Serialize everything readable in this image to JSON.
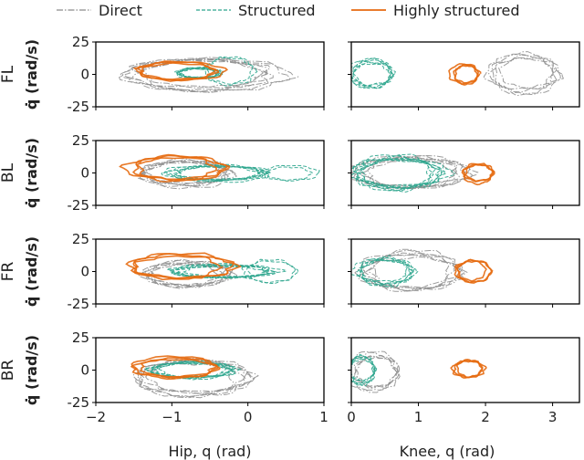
{
  "figure": {
    "xlabels": [
      "Hip, q (rad)",
      "Knee, q (rad)"
    ]
  },
  "legend": {
    "placement": "top",
    "entries": [
      {
        "label": "Direct",
        "color": "#8c8c8c",
        "style": "dashdot"
      },
      {
        "label": "Structured",
        "color": "#2ca58d",
        "style": "dashed"
      },
      {
        "label": "Highly structured",
        "color": "#e66a10",
        "style": "solid"
      }
    ]
  },
  "chart_data": {
    "type": "line",
    "kind": "phase-portrait grid",
    "rows": [
      "FL",
      "BL",
      "FR",
      "BR"
    ],
    "ylabel": "q̇ (rad/s)",
    "ylim": [
      -25,
      25
    ],
    "yticks": [
      25,
      0,
      -25
    ],
    "hip_xlim": [
      -2.0,
      1.0
    ],
    "hip_xticks": [
      -2,
      -1,
      0,
      1
    ],
    "hip_xlabel": "Hip, q (rad)",
    "knee_xlim": [
      0.0,
      3.4
    ],
    "knee_xticks": [
      0,
      1,
      2,
      3
    ],
    "knee_xlabel": "Knee, q (rad)",
    "grid": false,
    "note": "Each panel shows limit-cycle trajectories (joint angle vs joint velocity) approximated as clusters of loops: center (cx, cy), radii (rx, ry) in data units.",
    "panels": [
      {
        "row": "FL",
        "joint": "hip",
        "series": [
          {
            "name": "Direct",
            "loops": [
              {
                "cx": -0.55,
                "cy": 0,
                "rx": 0.95,
                "ry": 11,
                "n": 6
              }
            ]
          },
          {
            "name": "Structured",
            "loops": [
              {
                "cx": -0.65,
                "cy": 1,
                "rx": 0.3,
                "ry": 4,
                "n": 7
              },
              {
                "cx": -0.2,
                "cy": 2,
                "rx": 0.35,
                "ry": 12,
                "n": 2
              }
            ]
          },
          {
            "name": "Highly structured",
            "loops": [
              {
                "cx": -0.9,
                "cy": 2,
                "rx": 0.55,
                "ry": 7,
                "n": 3
              }
            ]
          }
        ]
      },
      {
        "row": "FL",
        "joint": "knee",
        "series": [
          {
            "name": "Direct",
            "loops": [
              {
                "cx": 2.6,
                "cy": 0,
                "rx": 0.5,
                "ry": 14,
                "n": 5
              }
            ]
          },
          {
            "name": "Structured",
            "loops": [
              {
                "cx": 0.3,
                "cy": 0,
                "rx": 0.3,
                "ry": 10,
                "n": 6
              }
            ]
          },
          {
            "name": "Highly structured",
            "loops": [
              {
                "cx": 1.7,
                "cy": 0,
                "rx": 0.2,
                "ry": 7,
                "n": 3
              }
            ]
          }
        ]
      },
      {
        "row": "BL",
        "joint": "hip",
        "series": [
          {
            "name": "Direct",
            "loops": [
              {
                "cx": -0.85,
                "cy": 0,
                "rx": 0.55,
                "ry": 10,
                "n": 6
              }
            ]
          },
          {
            "name": "Structured",
            "loops": [
              {
                "cx": -0.4,
                "cy": 0,
                "rx": 0.6,
                "ry": 6,
                "n": 6
              },
              {
                "cx": 0.55,
                "cy": 0,
                "rx": 0.35,
                "ry": 6,
                "n": 2
              }
            ]
          },
          {
            "name": "Highly structured",
            "loops": [
              {
                "cx": -0.9,
                "cy": 3,
                "rx": 0.6,
                "ry": 9,
                "n": 3
              }
            ]
          }
        ]
      },
      {
        "row": "BL",
        "joint": "knee",
        "series": [
          {
            "name": "Direct",
            "loops": [
              {
                "cx": 0.9,
                "cy": 0,
                "rx": 0.8,
                "ry": 12,
                "n": 6
              }
            ]
          },
          {
            "name": "Structured",
            "loops": [
              {
                "cx": 0.7,
                "cy": 0,
                "rx": 0.65,
                "ry": 12,
                "n": 8
              }
            ]
          },
          {
            "name": "Highly structured",
            "loops": [
              {
                "cx": 1.9,
                "cy": 0,
                "rx": 0.2,
                "ry": 7,
                "n": 3
              }
            ]
          }
        ]
      },
      {
        "row": "FR",
        "joint": "hip",
        "series": [
          {
            "name": "Direct",
            "loops": [
              {
                "cx": -0.8,
                "cy": -2,
                "rx": 0.5,
                "ry": 9,
                "n": 6
              }
            ]
          },
          {
            "name": "Structured",
            "loops": [
              {
                "cx": -0.3,
                "cy": 0,
                "rx": 0.65,
                "ry": 5,
                "n": 6
              },
              {
                "cx": 0.3,
                "cy": 0,
                "rx": 0.35,
                "ry": 8,
                "n": 2
              }
            ]
          },
          {
            "name": "Highly structured",
            "loops": [
              {
                "cx": -0.9,
                "cy": 4,
                "rx": 0.6,
                "ry": 9,
                "n": 3
              }
            ]
          }
        ]
      },
      {
        "row": "FR",
        "joint": "knee",
        "series": [
          {
            "name": "Direct",
            "loops": [
              {
                "cx": 0.9,
                "cy": 0,
                "rx": 0.7,
                "ry": 14,
                "n": 6
              }
            ]
          },
          {
            "name": "Structured",
            "loops": [
              {
                "cx": 0.5,
                "cy": 0,
                "rx": 0.4,
                "ry": 10,
                "n": 6
              }
            ]
          },
          {
            "name": "Highly structured",
            "loops": [
              {
                "cx": 1.8,
                "cy": 0,
                "rx": 0.25,
                "ry": 8,
                "n": 3
              }
            ]
          }
        ]
      },
      {
        "row": "BR",
        "joint": "hip",
        "series": [
          {
            "name": "Direct",
            "loops": [
              {
                "cx": -0.75,
                "cy": -6,
                "rx": 0.75,
                "ry": 14,
                "n": 6
              }
            ]
          },
          {
            "name": "Structured",
            "loops": [
              {
                "cx": -0.75,
                "cy": 0,
                "rx": 0.5,
                "ry": 6,
                "n": 7
              }
            ]
          },
          {
            "name": "Highly structured",
            "loops": [
              {
                "cx": -0.95,
                "cy": 2,
                "rx": 0.55,
                "ry": 8,
                "n": 3
              }
            ]
          }
        ]
      },
      {
        "row": "BR",
        "joint": "knee",
        "series": [
          {
            "name": "Direct",
            "loops": [
              {
                "cx": 0.35,
                "cy": -2,
                "rx": 0.35,
                "ry": 14,
                "n": 5
              }
            ]
          },
          {
            "name": "Structured",
            "loops": [
              {
                "cx": 0.15,
                "cy": 0,
                "rx": 0.2,
                "ry": 10,
                "n": 6
              }
            ]
          },
          {
            "name": "Highly structured",
            "loops": [
              {
                "cx": 1.75,
                "cy": 1,
                "rx": 0.22,
                "ry": 6,
                "n": 3
              }
            ]
          }
        ]
      }
    ]
  }
}
